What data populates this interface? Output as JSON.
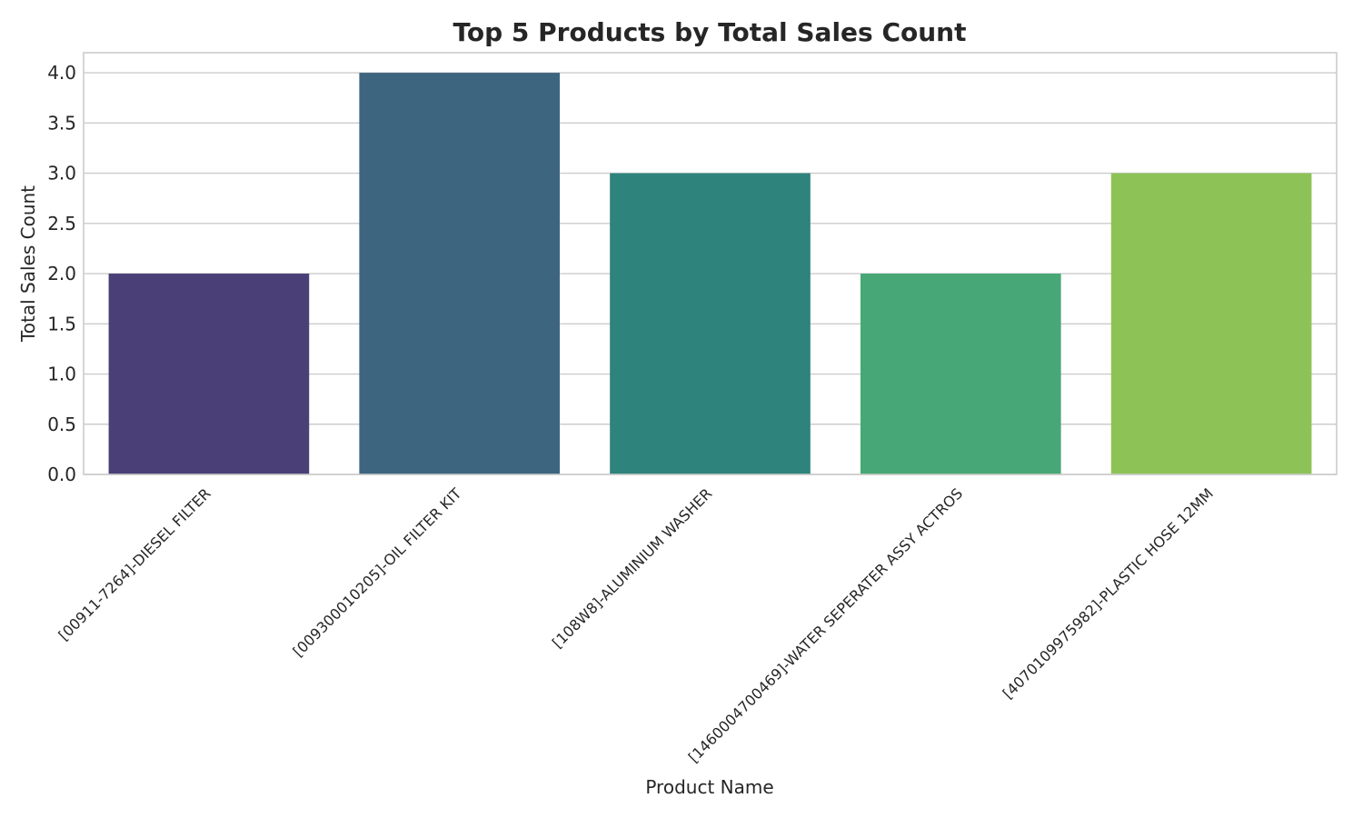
{
  "chart_data": {
    "type": "bar",
    "title": "Top 5 Products by Total Sales Count",
    "xlabel": "Product Name",
    "ylabel": "Total Sales Count",
    "categories": [
      "[00911-7264]-DIESEL FILTER",
      "[009300010205]-OIL FILTER KIT",
      "[108W8]-ALUMINIUM WASHER",
      "[1460004700469]-WATER SEPERATER ASSY ACTROS",
      "[4070109975982]-PLASTIC HOSE 12MM"
    ],
    "values": [
      2,
      4,
      3,
      2,
      3
    ],
    "colors": [
      "#4a4077",
      "#3e6580",
      "#2e837c",
      "#47a776",
      "#8dc356"
    ],
    "ylim": [
      0,
      4.2
    ],
    "yticks": [
      "0.0",
      "0.5",
      "1.0",
      "1.5",
      "2.0",
      "2.5",
      "3.0",
      "3.5",
      "4.0"
    ],
    "grid": "y",
    "legend": "none"
  }
}
